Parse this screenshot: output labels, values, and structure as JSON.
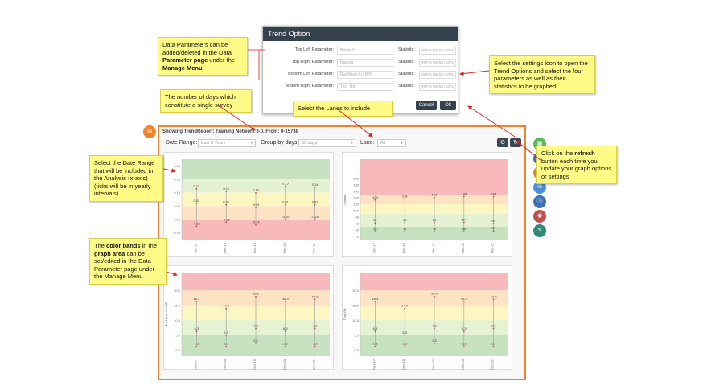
{
  "report": {
    "header_prefix": "Showing TrendReport:",
    "header_network": "Training Network",
    "header_suffix": "3-0,  From: 0-15738",
    "date_range_label": "Date Range:",
    "date_range_value": "Last 5 Years",
    "group_label": "Group by days:",
    "group_value": "60 days",
    "lane_label": "Lane:",
    "lane_value": "All",
    "settings_icon": "gear-icon",
    "refresh_icon": "refresh-icon"
  },
  "dialog": {
    "title": "Trend Option",
    "rows": [
      {
        "label": "Top Left Parameter:",
        "param": "Below IL",
        "stat_label": "Statistic:",
        "stat": "95th% Median 5th%"
      },
      {
        "label": "Top Right Parameter:",
        "param": "Naasra",
        "stat_label": "Statistic:",
        "stat": "95th% Median 5th%"
      },
      {
        "label": "Bottom Left Parameter:",
        "param": "Rut Mean in LWP",
        "stat_label": "Statistic:",
        "stat": "95th% Median 5th%"
      },
      {
        "label": "Bottom Right Parameter:",
        "param": "Text_Rd",
        "stat_label": "Statistic:",
        "stat": "95th% Median 5th%"
      }
    ],
    "cancel_label": "Cancel",
    "ok_label": "Ok"
  },
  "notes": {
    "data_params": [
      "Data Parameters can be",
      "added/deleted in the Data",
      "Parameter page",
      "under the",
      "Manage Menu"
    ],
    "days": "The number of days which constitute a single survey",
    "lanes": "Select the Lanes to include",
    "settings": "Select the settings icon to open the Trend Options and select the four parameters as well as their statistics to be graphed",
    "refresh_pre": "Click on the",
    "refresh_bold": "refresh",
    "refresh_post": "button each time you update your graph options or settings",
    "date": "Select the Date Range that will be included in the Analysis (x-axis) (ticks will be in yearly intervals)",
    "bands_pre": "The",
    "bands_bold1": "color bands",
    "bands_mid": "in the",
    "bands_bold2": "graph area",
    "bands_post": "can be set/edited in the Data Parameter page under the Manage Menu"
  },
  "colors": {
    "accent": "#f0842c",
    "dark": "#35414c",
    "note_bg": "#fffb86",
    "band_red": "#f7b9b9",
    "band_orange": "#fde3c4",
    "band_yellow": "#fbf6c2",
    "band_ltgreen": "#e4f1d3",
    "band_green": "#c7e2c0"
  },
  "side_buttons": [
    {
      "icon": "chart-icon",
      "color": "#f0842c"
    },
    {
      "icon": "grid-icon",
      "color": "#5cb85c"
    },
    {
      "icon": "road-icon",
      "color": "#3b6fb6"
    },
    {
      "icon": "car-icon",
      "color": "#e0842c"
    },
    {
      "icon": "chat-icon",
      "color": "#4a90d9"
    },
    {
      "icon": "info-icon",
      "color": "#3b6fb6"
    },
    {
      "icon": "target-icon",
      "color": "#c0504d"
    },
    {
      "icon": "edit-icon",
      "color": "#2e8b75"
    }
  ],
  "chart_data": [
    {
      "type": "line",
      "panel": "top-left",
      "x_ticks": [
        "Nov-17",
        "Dec-18",
        "Dec-19",
        "Dec-20",
        "Dec-21"
      ],
      "y_ticks": [
        "0.30",
        "0.20",
        "0.10",
        "0.00",
        "-0.10",
        "-0.20"
      ],
      "ylim": [
        -0.25,
        0.35
      ],
      "bands": [
        {
          "from": 0.2,
          "to": 0.35,
          "color": "#c7e2c0"
        },
        {
          "from": 0.1,
          "to": 0.2,
          "color": "#e4f1d3"
        },
        {
          "from": 0.0,
          "to": 0.1,
          "color": "#fbf6c2"
        },
        {
          "from": -0.1,
          "to": 0.0,
          "color": "#fde3c4"
        },
        {
          "from": -0.25,
          "to": -0.1,
          "color": "#f7b9b9"
        }
      ],
      "series": [
        {
          "values": [
            0.13,
            0.11,
            0.1,
            0.15,
            0.14
          ]
        },
        {
          "values": [
            0.02,
            0.01,
            -0.01,
            0.01,
            0.01
          ]
        },
        {
          "values": [
            -0.15,
            -0.12,
            -0.14,
            -0.1,
            -0.1
          ]
        }
      ]
    },
    {
      "type": "line",
      "panel": "top-right",
      "y_ticks": [
        "200",
        "180",
        "160",
        "140",
        "120",
        "100",
        "80",
        "60",
        "40",
        "20"
      ],
      "ylabel": "Naasra",
      "x_ticks": [
        "Nov-17",
        "Dec-18",
        "Dec-19",
        "Dec-20",
        "Dec-21"
      ],
      "ylim": [
        10,
        260
      ],
      "bands": [
        {
          "from": 150,
          "to": 260,
          "color": "#f7b9b9"
        },
        {
          "from": 120,
          "to": 150,
          "color": "#fde3c4"
        },
        {
          "from": 90,
          "to": 120,
          "color": "#fbf6c2"
        },
        {
          "from": 50,
          "to": 90,
          "color": "#e4f1d3"
        },
        {
          "from": 10,
          "to": 50,
          "color": "#c7e2c0"
        }
      ],
      "series": [
        {
          "values": [
            133,
            136,
            141,
            144,
            144
          ]
        },
        {
          "values": [
            62,
            63,
            63,
            64,
            60
          ]
        },
        {
          "values": [
            34,
            35,
            36,
            35,
            37
          ]
        }
      ]
    },
    {
      "type": "line",
      "panel": "bottom-left",
      "ylabel": "Rut Mean in LWP",
      "x_ticks": [
        "Nov-17",
        "Dec-18",
        "Dec-19",
        "Dec-20",
        "Dec-21"
      ],
      "y_ticks": [
        "20.0",
        "15.0",
        "10.0",
        "5.0",
        "0.0"
      ],
      "ylim": [
        -2,
        26
      ],
      "bands": [
        {
          "from": 20,
          "to": 26,
          "color": "#f7b9b9"
        },
        {
          "from": 15,
          "to": 20,
          "color": "#fde3c4"
        },
        {
          "from": 10,
          "to": 15,
          "color": "#fbf6c2"
        },
        {
          "from": 5,
          "to": 10,
          "color": "#e4f1d3"
        },
        {
          "from": -2,
          "to": 5,
          "color": "#c7e2c0"
        }
      ],
      "series": [
        {
          "values": [
            16.3,
            14.0,
            18.0,
            16.3,
            17.0
          ]
        },
        {
          "values": [
            6.3,
            5.0,
            7.3,
            6.3,
            7.3
          ]
        },
        {
          "values": [
            1.3,
            1.3,
            2.3,
            1.3,
            1.3
          ]
        }
      ]
    },
    {
      "type": "line",
      "panel": "bottom-right",
      "ylabel": "Text_Rd",
      "x_ticks": [
        "Nov-17",
        "Dec-18",
        "Dec-19",
        "Dec-20",
        "Dec-21"
      ],
      "y_ticks": [
        "20.0",
        "15.0",
        "10.0",
        "5.0",
        "0.0"
      ],
      "ylim": [
        -2,
        26
      ],
      "bands": [
        {
          "from": 20,
          "to": 26,
          "color": "#f7b9b9"
        },
        {
          "from": 15,
          "to": 20,
          "color": "#fde3c4"
        },
        {
          "from": 10,
          "to": 15,
          "color": "#fbf6c2"
        },
        {
          "from": 5,
          "to": 10,
          "color": "#e4f1d3"
        },
        {
          "from": -2,
          "to": 5,
          "color": "#c7e2c0"
        }
      ],
      "series": [
        {
          "values": [
            16.3,
            14.0,
            18.0,
            16.3,
            17.0
          ]
        },
        {
          "values": [
            6.3,
            5.0,
            7.3,
            6.3,
            7.3
          ]
        },
        {
          "values": [
            1.3,
            1.3,
            2.3,
            1.3,
            1.3
          ]
        }
      ]
    }
  ]
}
